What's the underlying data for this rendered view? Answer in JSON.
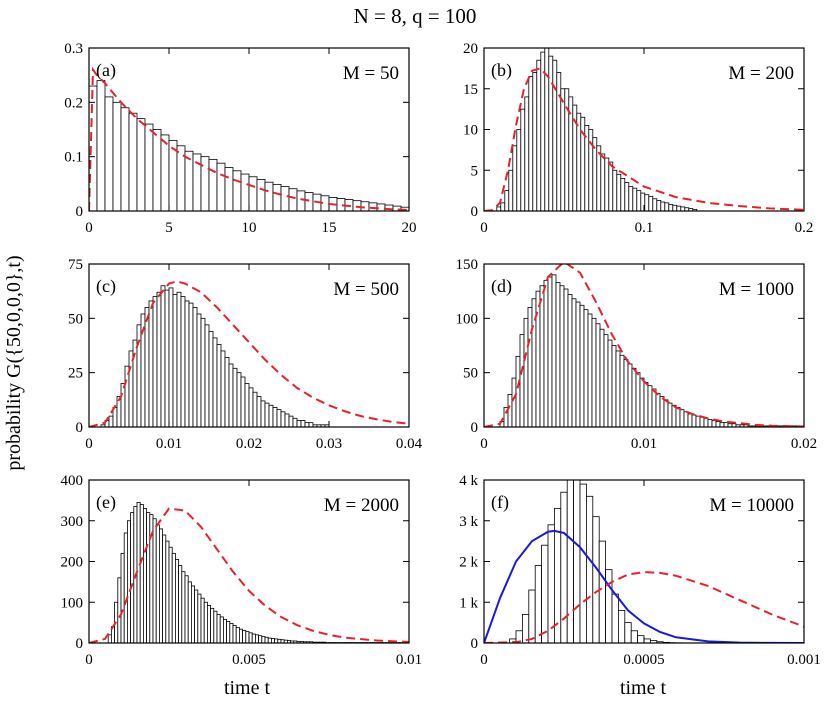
{
  "figure": {
    "suptitle": "N = 8,  q = 100",
    "ylabel": "probability G({50,0,0,0},t)",
    "xlabel": "time t"
  },
  "colors": {
    "dashed_curve": "#e8222a",
    "solid_curve": "#1a1adc",
    "bars": "#000000"
  },
  "chart_data": [
    {
      "type": "bar",
      "panel": "(a)",
      "title": "M = 50",
      "xlim": [
        0,
        20
      ],
      "ylim": [
        0,
        0.3
      ],
      "xticks": [
        0,
        5,
        10,
        15,
        20
      ],
      "xticklabels": [
        "0",
        "5",
        "10",
        "15",
        "20"
      ],
      "yticks": [
        0,
        0.1,
        0.2,
        0.3
      ],
      "yticklabels": [
        "0",
        "0.1",
        "0.2",
        "0.3"
      ],
      "bin_start": 0,
      "bin_width": 0.5,
      "values": [
        0.23,
        0.24,
        0.21,
        0.2,
        0.19,
        0.18,
        0.17,
        0.16,
        0.15,
        0.14,
        0.13,
        0.12,
        0.11,
        0.105,
        0.1,
        0.095,
        0.088,
        0.08,
        0.074,
        0.068,
        0.063,
        0.058,
        0.053,
        0.049,
        0.045,
        0.041,
        0.037,
        0.034,
        0.031,
        0.028,
        0.025,
        0.023,
        0.021,
        0.019,
        0.017,
        0.015,
        0.013,
        0.011,
        0.009,
        0.007
      ],
      "dashed_curve": {
        "x": [
          0,
          0.25,
          0.5,
          1,
          2,
          3,
          4,
          5,
          6,
          7,
          8,
          9,
          10,
          11,
          12,
          13,
          14,
          15,
          16,
          17,
          18,
          19,
          20
        ],
        "y": [
          0,
          0.26,
          0.25,
          0.235,
          0.2,
          0.17,
          0.145,
          0.12,
          0.1,
          0.085,
          0.07,
          0.058,
          0.048,
          0.038,
          0.03,
          0.023,
          0.018,
          0.013,
          0.01,
          0.007,
          0.005,
          0.003,
          0.002
        ]
      }
    },
    {
      "type": "bar",
      "panel": "(b)",
      "title": "M = 200",
      "xlim": [
        0,
        0.2
      ],
      "ylim": [
        0,
        20
      ],
      "xticks": [
        0,
        0.1,
        0.2
      ],
      "xticklabels": [
        "0",
        "0.1",
        "0.2"
      ],
      "yticks": [
        0,
        5,
        10,
        15,
        20
      ],
      "yticklabels": [
        "0",
        "5",
        "10",
        "15",
        "20"
      ],
      "bin_start": 0.008,
      "bin_width": 0.0025,
      "values": [
        0.5,
        1,
        2.5,
        5,
        8,
        10,
        12.5,
        14,
        16.5,
        17,
        18.5,
        19.5,
        20,
        19,
        18.5,
        17,
        15,
        15,
        14,
        13,
        12,
        11.5,
        10.5,
        10,
        9,
        8,
        7,
        6.5,
        6,
        5,
        4.5,
        4,
        3.5,
        3,
        2.8,
        2.5,
        2.2,
        2,
        1.8,
        1.5,
        1.3,
        1.1,
        1,
        0.8,
        0.7,
        0.6,
        0.5,
        0.4,
        0.3,
        0.2
      ],
      "dashed_curve": {
        "x": [
          0,
          0.005,
          0.01,
          0.015,
          0.02,
          0.025,
          0.03,
          0.035,
          0.04,
          0.05,
          0.06,
          0.07,
          0.08,
          0.1,
          0.12,
          0.14,
          0.16,
          0.18,
          0.2
        ],
        "y": [
          0,
          0.1,
          1,
          5,
          10.5,
          15,
          17.2,
          17.5,
          16.5,
          13.2,
          10,
          7.5,
          5.5,
          3,
          1.7,
          1,
          0.6,
          0.3,
          0.15
        ]
      }
    },
    {
      "type": "bar",
      "panel": "(c)",
      "title": "M = 500",
      "xlim": [
        0,
        0.04
      ],
      "ylim": [
        0,
        75
      ],
      "xticks": [
        0,
        0.01,
        0.02,
        0.03,
        0.04
      ],
      "xticklabels": [
        "0",
        "0.01",
        "0.02",
        "0.03",
        "0.04"
      ],
      "yticks": [
        0,
        25,
        50,
        75
      ],
      "yticklabels": [
        "0",
        "25",
        "50",
        "75"
      ],
      "bin_start": 0.001,
      "bin_width": 0.0005,
      "values": [
        0,
        1,
        3,
        5,
        9,
        14,
        20,
        28,
        35,
        40,
        47,
        52,
        55,
        58,
        60,
        62,
        65,
        63,
        64,
        61,
        62,
        60,
        58,
        57,
        55,
        52,
        50,
        47,
        44,
        41,
        38,
        35,
        32,
        29,
        27,
        25,
        23,
        20,
        18,
        16,
        14,
        12,
        11,
        10,
        9,
        8,
        7,
        6,
        5,
        4,
        3,
        3,
        2,
        2,
        1,
        1,
        1,
        1
      ],
      "dashed_curve": {
        "x": [
          0,
          0.002,
          0.004,
          0.006,
          0.008,
          0.01,
          0.011,
          0.012,
          0.014,
          0.016,
          0.018,
          0.02,
          0.022,
          0.024,
          0.026,
          0.028,
          0.03,
          0.032,
          0.034,
          0.036,
          0.038,
          0.04
        ],
        "y": [
          0,
          2,
          14,
          37,
          57,
          66,
          67,
          66,
          62,
          55,
          47,
          39,
          31,
          24,
          18,
          13.5,
          10,
          7.2,
          5,
          3.5,
          2.3,
          1.5
        ]
      }
    },
    {
      "type": "bar",
      "panel": "(d)",
      "title": "M = 1000",
      "xlim": [
        0,
        0.02
      ],
      "ylim": [
        0,
        150
      ],
      "xticks": [
        0,
        0.01,
        0.02
      ],
      "xticklabels": [
        "0",
        "0.01",
        "0.02"
      ],
      "yticks": [
        0,
        50,
        100,
        150
      ],
      "yticklabels": [
        "0",
        "50",
        "100",
        "150"
      ],
      "bin_start": 0.001,
      "bin_width": 0.00025,
      "values": [
        5,
        18,
        30,
        45,
        65,
        85,
        100,
        110,
        118,
        125,
        130,
        135,
        138,
        140,
        133,
        130,
        127,
        122,
        118,
        115,
        112,
        108,
        104,
        100,
        95,
        90,
        85,
        80,
        75,
        70,
        66,
        62,
        58,
        54,
        50,
        45,
        41,
        38,
        35,
        31,
        28,
        25,
        22,
        20,
        18,
        16,
        14,
        12,
        11,
        10,
        9,
        8,
        7,
        6,
        5,
        4,
        4,
        3,
        3,
        2,
        2,
        2,
        1,
        1,
        1,
        1,
        1,
        1,
        1,
        1,
        1,
        1,
        1,
        1,
        1,
        1
      ],
      "dashed_curve": {
        "x": [
          0,
          0.001,
          0.002,
          0.003,
          0.004,
          0.005,
          0.006,
          0.007,
          0.008,
          0.009,
          0.01,
          0.011,
          0.012,
          0.013,
          0.014,
          0.015,
          0.016,
          0.017,
          0.018,
          0.019,
          0.02
        ],
        "y": [
          0,
          3,
          30,
          90,
          138,
          152,
          142,
          115,
          85,
          60,
          42,
          28,
          18,
          12,
          8,
          5,
          3.5,
          2,
          1.2,
          0.8,
          0.5
        ]
      }
    },
    {
      "type": "bar",
      "panel": "(e)",
      "title": "M = 2000",
      "xlim": [
        0,
        0.01
      ],
      "ylim": [
        0,
        400
      ],
      "xticks": [
        0,
        0.005,
        0.01
      ],
      "xticklabels": [
        "0",
        "0.005",
        "0.01"
      ],
      "yticks": [
        0,
        100,
        200,
        300,
        400
      ],
      "yticklabels": [
        "0",
        "100",
        "200",
        "300",
        "400"
      ],
      "bin_start": 0.0006,
      "bin_width": 0.0001,
      "values": [
        20,
        40,
        100,
        160,
        220,
        270,
        300,
        320,
        335,
        345,
        340,
        330,
        320,
        315,
        305,
        290,
        280,
        265,
        250,
        235,
        220,
        205,
        190,
        175,
        165,
        150,
        140,
        130,
        120,
        110,
        100,
        92,
        85,
        78,
        70,
        64,
        58,
        53,
        48,
        43,
        38,
        34,
        31,
        28,
        25,
        22,
        20,
        18,
        16,
        14,
        12,
        11,
        10,
        9,
        8,
        7,
        6,
        5,
        5,
        4,
        4,
        3,
        3,
        3,
        2,
        2,
        2,
        2,
        1,
        1,
        1,
        1,
        1,
        1,
        1,
        1,
        1,
        1,
        1,
        1,
        1,
        1,
        1,
        1,
        1,
        1,
        1,
        1,
        1,
        1,
        1,
        1,
        1,
        1
      ],
      "dashed_curve": {
        "x": [
          0,
          0.0005,
          0.001,
          0.0015,
          0.002,
          0.0025,
          0.003,
          0.0035,
          0.004,
          0.0045,
          0.005,
          0.0055,
          0.006,
          0.0065,
          0.007,
          0.0075,
          0.008,
          0.009,
          0.01
        ],
        "y": [
          0,
          10,
          70,
          175,
          275,
          330,
          325,
          285,
          230,
          175,
          128,
          92,
          64,
          44,
          30,
          20,
          13,
          6,
          2.5
        ]
      }
    },
    {
      "type": "bar",
      "panel": "(f)",
      "title": "M = 10000",
      "xlim": [
        0,
        0.001
      ],
      "ylim": [
        0,
        4000
      ],
      "xticks": [
        0,
        0.0005,
        0.001
      ],
      "xticklabels": [
        "0",
        "0.0005",
        "0.001"
      ],
      "yticks": [
        0,
        1000,
        2000,
        3000,
        4000
      ],
      "yticklabels": [
        "0",
        "1 k",
        "2 k",
        "3 k",
        "4 k"
      ],
      "bin_start": 8e-05,
      "bin_width": 2e-05,
      "values": [
        100,
        300,
        700,
        1300,
        1900,
        2400,
        2900,
        3300,
        3700,
        4000,
        4000,
        3900,
        3600,
        3100,
        2500,
        1800,
        1200,
        800,
        500,
        300,
        180,
        100,
        60,
        30,
        15,
        8,
        4,
        2,
        1,
        0,
        0,
        0,
        0,
        0,
        0,
        0
      ],
      "dashed_curve": {
        "x": [
          0,
          0.0001,
          0.00015,
          0.0002,
          0.00025,
          0.0003,
          0.00035,
          0.0004,
          0.00045,
          0.0005,
          0.00055,
          0.0006,
          0.0007,
          0.0008,
          0.0009,
          0.001
        ],
        "y": [
          0,
          20,
          100,
          300,
          600,
          950,
          1250,
          1500,
          1680,
          1740,
          1720,
          1650,
          1400,
          1050,
          700,
          400
        ]
      },
      "solid_curve": {
        "x": [
          0,
          5e-05,
          0.0001,
          0.00015,
          0.0002,
          0.00022,
          0.00025,
          0.0003,
          0.00035,
          0.0004,
          0.00045,
          0.0005,
          0.00055,
          0.0006,
          0.0007,
          0.0008,
          0.0009,
          0.001
        ],
        "y": [
          0,
          1100,
          2000,
          2500,
          2730,
          2750,
          2700,
          2350,
          1850,
          1300,
          800,
          480,
          270,
          140,
          40,
          10,
          2,
          0
        ]
      }
    }
  ]
}
